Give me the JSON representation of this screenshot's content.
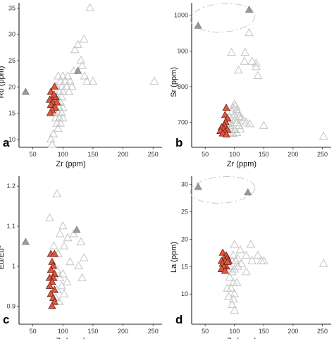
{
  "chart_data": [
    {
      "type": "scatter",
      "panel": "a",
      "xlabel": "Zr (ppm)",
      "ylabel": "Rb (ppm)",
      "xlim": [
        27,
        265
      ],
      "ylim": [
        8.5,
        36
      ],
      "xticks": [
        50,
        100,
        150,
        200,
        250
      ],
      "yticks": [
        10,
        15,
        20,
        25,
        30,
        35
      ],
      "grid": false,
      "highlight_ellipse": null,
      "series": [
        {
          "marker": "triangle-open",
          "color": "#c4c4c4",
          "points": [
            [
              145,
              35
            ],
            [
              125,
              28
            ],
            [
              135,
              29
            ],
            [
              120,
              27
            ],
            [
              130,
              25
            ],
            [
              132,
              24
            ],
            [
              118,
              23
            ],
            [
              136,
              22
            ],
            [
              140,
              21
            ],
            [
              150,
              21
            ],
            [
              92,
              22
            ],
            [
              96,
              21
            ],
            [
              100,
              22
            ],
            [
              104,
              21
            ],
            [
              108,
              22
            ],
            [
              98,
              20
            ],
            [
              106,
              20
            ],
            [
              112,
              21
            ],
            [
              88,
              20
            ],
            [
              94,
              19
            ],
            [
              100,
              19
            ],
            [
              90,
              18
            ],
            [
              98,
              18
            ],
            [
              110,
              19
            ],
            [
              115,
              20
            ],
            [
              85,
              17
            ],
            [
              92,
              17
            ],
            [
              96,
              17
            ],
            [
              88,
              16
            ],
            [
              94,
              16
            ],
            [
              100,
              16
            ],
            [
              86,
              15
            ],
            [
              92,
              15
            ],
            [
              98,
              15
            ],
            [
              88,
              14
            ],
            [
              94,
              14
            ],
            [
              100,
              14
            ],
            [
              90,
              13
            ],
            [
              96,
              13
            ],
            [
              92,
              12
            ],
            [
              84,
              11
            ],
            [
              80,
              10
            ],
            [
              82,
              9
            ],
            [
              252,
              21
            ]
          ]
        },
        {
          "marker": "triangle-filled",
          "color": "#9a9a9a",
          "points": [
            [
              38,
              19
            ],
            [
              125,
              23
            ]
          ]
        },
        {
          "marker": "triangle-filled",
          "color": "#e2563f",
          "points": [
            [
              80,
              19
            ],
            [
              86,
              20
            ],
            [
              83,
              18
            ],
            [
              88,
              18
            ],
            [
              78,
              17.5
            ],
            [
              84,
              17
            ],
            [
              90,
              17
            ],
            [
              80,
              16.5
            ],
            [
              87,
              16
            ],
            [
              82,
              15.5
            ],
            [
              79,
              15
            ],
            [
              85,
              18.5
            ]
          ]
        }
      ]
    },
    {
      "type": "scatter",
      "panel": "b",
      "xlabel": "Zr (ppm)",
      "ylabel": "Sr (ppm)",
      "xlim": [
        27,
        265
      ],
      "ylim": [
        630,
        1035
      ],
      "xticks": [
        50,
        100,
        150,
        200,
        250
      ],
      "yticks": [
        700,
        800,
        900,
        1000
      ],
      "grid": false,
      "highlight_ellipse": {
        "cx": 80,
        "cy": 993,
        "rx": 55,
        "ry": 40
      },
      "series": [
        {
          "marker": "triangle-open",
          "color": "#c4c4c4",
          "points": [
            [
              125,
              950
            ],
            [
              95,
              895
            ],
            [
              118,
              895
            ],
            [
              130,
              870
            ],
            [
              117,
              870
            ],
            [
              137,
              865
            ],
            [
              137,
              855
            ],
            [
              107,
              845
            ],
            [
              140,
              830
            ],
            [
              100,
              750
            ],
            [
              102,
              745
            ],
            [
              98,
              740
            ],
            [
              104,
              735
            ],
            [
              96,
              730
            ],
            [
              106,
              725
            ],
            [
              100,
              720
            ],
            [
              108,
              715
            ],
            [
              94,
              710
            ],
            [
              112,
              712
            ],
            [
              100,
              705
            ],
            [
              115,
              705
            ],
            [
              92,
              700
            ],
            [
              104,
              698
            ],
            [
              120,
              700
            ],
            [
              90,
              695
            ],
            [
              96,
              690
            ],
            [
              108,
              690
            ],
            [
              126,
              695
            ],
            [
              150,
              690
            ],
            [
              94,
              680
            ],
            [
              100,
              678
            ],
            [
              110,
              680
            ],
            [
              92,
              670
            ],
            [
              98,
              668
            ],
            [
              104,
              670
            ],
            [
              252,
              660
            ]
          ]
        },
        {
          "marker": "triangle-filled",
          "color": "#9a9a9a",
          "points": [
            [
              38,
              970
            ],
            [
              125,
              1015
            ]
          ]
        },
        {
          "marker": "triangle-filled",
          "color": "#e2563f",
          "points": [
            [
              86,
              740
            ],
            [
              84,
              720
            ],
            [
              88,
              710
            ],
            [
              85,
              700
            ],
            [
              83,
              690
            ],
            [
              78,
              685
            ],
            [
              82,
              680
            ],
            [
              88,
              678
            ],
            [
              76,
              675
            ],
            [
              84,
              672
            ],
            [
              80,
              668
            ],
            [
              86,
              665
            ]
          ]
        }
      ]
    },
    {
      "type": "scatter",
      "panel": "c",
      "xlabel": "Zr (ppm)",
      "ylabel": "Eu/Eu*",
      "xlim": [
        27,
        265
      ],
      "ylim": [
        0.855,
        1.225
      ],
      "xticks": [
        50,
        100,
        150,
        200,
        250
      ],
      "yticks": [
        0.9,
        1.0,
        1.1,
        1.2
      ],
      "grid": false,
      "highlight_ellipse": null,
      "series": [
        {
          "marker": "triangle-open",
          "color": "#c4c4c4",
          "points": [
            [
              90,
              1.18
            ],
            [
              78,
              1.12
            ],
            [
              100,
              1.1
            ],
            [
              95,
              1.08
            ],
            [
              118,
              1.08
            ],
            [
              108,
              1.07
            ],
            [
              130,
              1.06
            ],
            [
              102,
              1.05
            ],
            [
              85,
              1.05
            ],
            [
              92,
              1.03
            ],
            [
              135,
              1.02
            ],
            [
              112,
              1.01
            ],
            [
              126,
              1.0
            ],
            [
              90,
              0.99
            ],
            [
              100,
              0.98
            ],
            [
              95,
              0.97
            ],
            [
              132,
              0.97
            ],
            [
              107,
              0.96
            ],
            [
              98,
              0.95
            ],
            [
              90,
              0.94
            ],
            [
              102,
              0.93
            ],
            [
              88,
              0.92
            ],
            [
              94,
              0.91
            ]
          ]
        },
        {
          "marker": "triangle-filled",
          "color": "#9a9a9a",
          "points": [
            [
              38,
              1.06
            ],
            [
              123,
              1.09
            ]
          ]
        },
        {
          "marker": "triangle-filled",
          "color": "#e2563f",
          "points": [
            [
              80,
              1.03
            ],
            [
              86,
              1.03
            ],
            [
              82,
              1.01
            ],
            [
              84,
              1.0
            ],
            [
              80,
              0.99
            ],
            [
              86,
              0.98
            ],
            [
              78,
              0.97
            ],
            [
              84,
              0.97
            ],
            [
              82,
              0.96
            ],
            [
              78,
              0.95
            ],
            [
              86,
              0.94
            ],
            [
              80,
              0.93
            ],
            [
              84,
              0.92
            ],
            [
              86,
              0.91
            ],
            [
              82,
              0.9
            ]
          ]
        }
      ]
    },
    {
      "type": "scatter",
      "panel": "d",
      "xlabel": "Zr (ppm)",
      "ylabel": "La (ppm)",
      "xlim": [
        27,
        265
      ],
      "ylim": [
        4.5,
        31.5
      ],
      "xticks": [
        50,
        100,
        150,
        200,
        250
      ],
      "yticks": [
        10,
        15,
        20,
        25,
        30
      ],
      "grid": false,
      "highlight_ellipse": {
        "cx": 80,
        "cy": 29,
        "rx": 55,
        "ry": 2.4
      },
      "series": [
        {
          "marker": "triangle-open",
          "color": "#c4c4c4",
          "points": [
            [
              128,
              19
            ],
            [
              100,
              19
            ],
            [
              110,
              18
            ],
            [
              120,
              17
            ],
            [
              140,
              17
            ],
            [
              105,
              16.5
            ],
            [
              150,
              16
            ],
            [
              146,
              16
            ],
            [
              130,
              16
            ],
            [
              98,
              17
            ],
            [
              96,
              16
            ],
            [
              102,
              16
            ],
            [
              112,
              15.5
            ],
            [
              92,
              15
            ],
            [
              100,
              14.5
            ],
            [
              106,
              15
            ],
            [
              96,
              14
            ],
            [
              120,
              14
            ],
            [
              92,
              13
            ],
            [
              98,
              12
            ],
            [
              104,
              12
            ],
            [
              88,
              11
            ],
            [
              94,
              11
            ],
            [
              100,
              10
            ],
            [
              90,
              9.5
            ],
            [
              98,
              9
            ],
            [
              96,
              8
            ],
            [
              100,
              7
            ],
            [
              252,
              15.5
            ]
          ]
        },
        {
          "marker": "triangle-filled",
          "color": "#9a9a9a",
          "points": [
            [
              38,
              29.5
            ],
            [
              123,
              28.5
            ]
          ]
        },
        {
          "marker": "triangle-filled",
          "color": "#e2563f",
          "points": [
            [
              80,
              17.5
            ],
            [
              86,
              17
            ],
            [
              82,
              16.5
            ],
            [
              88,
              16.5
            ],
            [
              78,
              16
            ],
            [
              84,
              16
            ],
            [
              90,
              16
            ],
            [
              80,
              15.5
            ],
            [
              86,
              15
            ],
            [
              82,
              15
            ],
            [
              78,
              14.5
            ],
            [
              84,
              14.2
            ],
            [
              88,
              15.8
            ]
          ]
        }
      ]
    }
  ]
}
